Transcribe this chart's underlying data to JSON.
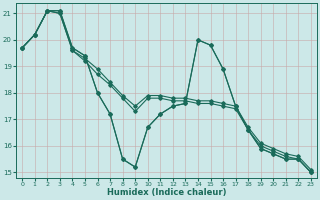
{
  "xlabel": "Humidex (Indice chaleur)",
  "bg_color": "#cce8e8",
  "line_color": "#1a6b5a",
  "xlim": [
    -0.5,
    23.5
  ],
  "ylim": [
    14.8,
    21.4
  ],
  "yticks": [
    15,
    16,
    17,
    18,
    19,
    20,
    21
  ],
  "xticks": [
    0,
    1,
    2,
    3,
    4,
    5,
    6,
    7,
    8,
    9,
    10,
    11,
    12,
    13,
    14,
    15,
    16,
    17,
    18,
    19,
    20,
    21,
    22,
    23
  ],
  "series": [
    [
      19.7,
      20.2,
      21.1,
      21.1,
      19.7,
      19.4,
      18.0,
      17.2,
      15.5,
      15.2,
      16.7,
      17.2,
      17.5,
      17.6,
      20.0,
      19.8,
      18.9,
      17.5,
      16.6,
      15.9,
      15.7,
      15.5,
      15.5,
      15.0
    ],
    [
      19.7,
      20.2,
      21.1,
      21.0,
      19.6,
      19.2,
      18.7,
      18.3,
      17.8,
      17.3,
      17.8,
      17.8,
      17.7,
      17.7,
      17.6,
      17.6,
      17.5,
      17.4,
      16.6,
      16.0,
      15.8,
      15.6,
      15.5,
      15.0
    ],
    [
      19.7,
      20.2,
      21.1,
      21.0,
      19.6,
      19.3,
      18.9,
      18.4,
      17.9,
      17.5,
      17.9,
      17.9,
      17.8,
      17.8,
      17.7,
      17.7,
      17.6,
      17.5,
      16.7,
      16.1,
      15.9,
      15.7,
      15.6,
      15.1
    ],
    [
      19.7,
      20.2,
      21.1,
      21.1,
      19.7,
      19.4,
      18.0,
      17.2,
      15.5,
      15.2,
      16.7,
      17.2,
      17.5,
      17.6,
      20.0,
      19.8,
      18.9,
      17.5,
      16.6,
      15.9,
      15.7,
      15.5,
      15.5,
      15.0
    ]
  ]
}
